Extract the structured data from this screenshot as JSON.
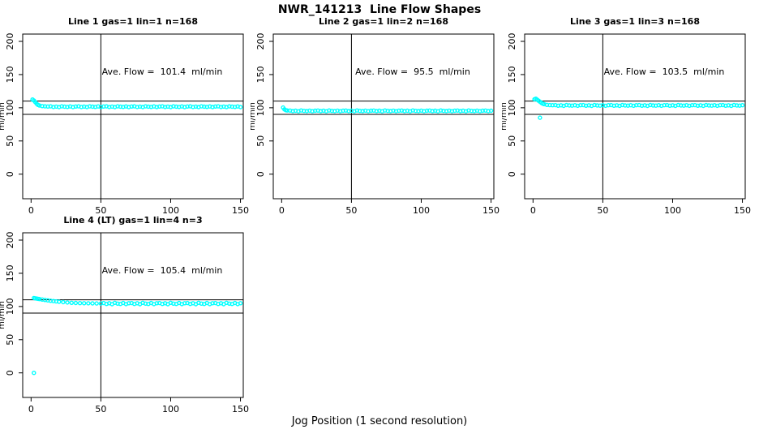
{
  "title": "NWR_141213  Line Flow Shapes",
  "xlabel": "Jog Position (1 second resolution)",
  "ylabel": "ml/min",
  "colors": {
    "points": "#00FFFF",
    "axis": "#000000",
    "background": "#FFFFFF"
  },
  "chart_data": [
    {
      "type": "scatter",
      "title": "Line 1 gas=1 lin=1 n=168",
      "annotation": "Ave. Flow =  101.4  ml/min",
      "ave_flow_ml_min": 101.4,
      "xlim": [
        -6,
        152
      ],
      "ylim": [
        -37,
        211
      ],
      "xticks": [
        0,
        50,
        100,
        150
      ],
      "yticks": [
        0,
        50,
        100,
        150,
        200
      ],
      "hlines": [
        110,
        90
      ],
      "vlines": [
        50
      ],
      "grid": false,
      "legend": null,
      "x": [
        1,
        2,
        3,
        4,
        5,
        6,
        8,
        10,
        12,
        14,
        16,
        18,
        20,
        22,
        24,
        26,
        28,
        30,
        32,
        34,
        36,
        38,
        40,
        42,
        44,
        46,
        48,
        50,
        52,
        54,
        56,
        58,
        60,
        62,
        64,
        66,
        68,
        70,
        72,
        74,
        76,
        78,
        80,
        82,
        84,
        86,
        88,
        90,
        92,
        94,
        96,
        98,
        100,
        102,
        104,
        106,
        108,
        110,
        112,
        114,
        116,
        118,
        120,
        122,
        124,
        126,
        128,
        130,
        132,
        134,
        136,
        138,
        140,
        142,
        144,
        146,
        148,
        150
      ],
      "y": [
        112.4,
        111.0,
        108.6,
        106.1,
        104.4,
        103.4,
        102.5,
        102.1,
        101.9,
        102.1,
        101.2,
        101.8,
        101.0,
        102.2,
        101.6,
        101.3,
        102.0,
        101.1,
        101.9,
        102.1,
        101.2,
        101.8,
        101.0,
        102.2,
        101.6,
        101.3,
        102.0,
        101.1,
        101.9,
        102.1,
        101.2,
        101.8,
        101.0,
        102.2,
        101.6,
        101.3,
        102.0,
        101.1,
        101.9,
        102.1,
        101.2,
        101.8,
        101.0,
        102.2,
        101.6,
        101.3,
        102.0,
        101.1,
        101.9,
        102.1,
        101.2,
        101.8,
        101.0,
        102.2,
        101.6,
        101.3,
        102.0,
        101.1,
        101.9,
        102.1,
        101.2,
        101.8,
        101.0,
        102.2,
        101.6,
        101.3,
        102.0,
        101.1,
        101.9,
        102.1,
        101.2,
        101.8,
        101.0,
        102.2,
        101.6,
        101.3,
        102.0,
        101.1
      ]
    },
    {
      "type": "scatter",
      "title": "Line 2 gas=1 lin=2 n=168",
      "annotation": "Ave. Flow =  95.5  ml/min",
      "ave_flow_ml_min": 95.5,
      "xlim": [
        -6,
        152
      ],
      "ylim": [
        -37,
        211
      ],
      "xticks": [
        0,
        50,
        100,
        150
      ],
      "yticks": [
        0,
        50,
        100,
        150,
        200
      ],
      "hlines": [
        110,
        90
      ],
      "vlines": [
        50
      ],
      "grid": false,
      "legend": null,
      "x": [
        1,
        2,
        3,
        4,
        6,
        8,
        10,
        12,
        14,
        16,
        18,
        20,
        22,
        24,
        26,
        28,
        30,
        32,
        34,
        36,
        38,
        40,
        42,
        44,
        46,
        48,
        50,
        52,
        54,
        56,
        58,
        60,
        62,
        64,
        66,
        68,
        70,
        72,
        74,
        76,
        78,
        80,
        82,
        84,
        86,
        88,
        90,
        92,
        94,
        96,
        98,
        100,
        102,
        104,
        106,
        108,
        110,
        112,
        114,
        116,
        118,
        120,
        122,
        124,
        126,
        128,
        130,
        132,
        134,
        136,
        138,
        140,
        142,
        144,
        146,
        148,
        150
      ],
      "y": [
        100.3,
        97.6,
        96.3,
        95.9,
        95.8,
        94.9,
        95.5,
        94.7,
        95.9,
        95.3,
        95.0,
        95.7,
        94.8,
        95.6,
        95.8,
        94.9,
        95.5,
        94.7,
        95.9,
        95.3,
        95.0,
        95.7,
        94.8,
        95.6,
        95.8,
        94.9,
        95.5,
        94.7,
        95.9,
        95.3,
        95.0,
        95.7,
        94.8,
        95.6,
        95.8,
        94.9,
        95.5,
        94.7,
        95.9,
        95.3,
        95.0,
        95.7,
        94.8,
        95.6,
        95.8,
        94.9,
        95.5,
        94.7,
        95.9,
        95.3,
        95.0,
        95.7,
        94.8,
        95.6,
        95.8,
        94.9,
        95.5,
        94.7,
        95.9,
        95.3,
        95.0,
        95.7,
        94.8,
        95.6,
        95.8,
        94.9,
        95.5,
        94.7,
        95.9,
        95.3,
        95.0,
        95.7,
        94.8,
        95.6,
        95.8,
        94.9,
        95.5
      ]
    },
    {
      "type": "scatter",
      "title": "Line 3 gas=1 lin=3 n=168",
      "annotation": "Ave. Flow =  103.5  ml/min",
      "ave_flow_ml_min": 103.5,
      "xlim": [
        -6,
        152
      ],
      "ylim": [
        -37,
        211
      ],
      "xticks": [
        0,
        50,
        100,
        150
      ],
      "yticks": [
        0,
        50,
        100,
        150,
        200
      ],
      "hlines": [
        110,
        90
      ],
      "vlines": [
        50
      ],
      "grid": false,
      "legend": null,
      "x": [
        1,
        2,
        3,
        4,
        5,
        5,
        6,
        7,
        8,
        10,
        12,
        14,
        16,
        18,
        20,
        22,
        24,
        26,
        28,
        30,
        32,
        34,
        36,
        38,
        40,
        42,
        44,
        46,
        48,
        50,
        52,
        54,
        56,
        58,
        60,
        62,
        64,
        66,
        68,
        70,
        72,
        74,
        76,
        78,
        80,
        82,
        84,
        86,
        88,
        90,
        92,
        94,
        96,
        98,
        100,
        102,
        104,
        106,
        108,
        110,
        112,
        114,
        116,
        118,
        120,
        122,
        124,
        126,
        128,
        130,
        132,
        134,
        136,
        138,
        140,
        142,
        144,
        146,
        148,
        150
      ],
      "y": [
        112.8,
        113.6,
        112.2,
        110.6,
        109.0,
        85.0,
        107.4,
        106.2,
        105.4,
        104.4,
        104.0,
        103.8,
        104.0,
        103.1,
        103.7,
        102.9,
        104.1,
        103.5,
        103.2,
        103.9,
        103.0,
        103.8,
        104.0,
        103.1,
        103.7,
        102.9,
        104.1,
        103.5,
        103.2,
        103.9,
        103.0,
        103.8,
        104.0,
        103.1,
        103.7,
        102.9,
        104.1,
        103.5,
        103.2,
        103.9,
        103.0,
        103.8,
        104.0,
        103.1,
        103.7,
        102.9,
        104.1,
        103.5,
        103.2,
        103.9,
        103.0,
        103.8,
        104.0,
        103.1,
        103.7,
        102.9,
        104.1,
        103.5,
        103.2,
        103.9,
        103.0,
        103.8,
        104.0,
        103.1,
        103.7,
        102.9,
        104.1,
        103.5,
        103.2,
        103.9,
        103.0,
        103.8,
        104.0,
        103.1,
        103.7,
        102.9,
        104.1,
        103.5,
        103.2,
        103.9
      ]
    },
    {
      "type": "scatter",
      "title": "Line 4 (LT) gas=1 lin=4 n=3",
      "annotation": "Ave. Flow =  105.4  ml/min",
      "ave_flow_ml_min": 105.4,
      "xlim": [
        -6,
        152
      ],
      "ylim": [
        -37,
        211
      ],
      "xticks": [
        0,
        50,
        100,
        150
      ],
      "yticks": [
        0,
        50,
        100,
        150,
        200
      ],
      "hlines": [
        110,
        90
      ],
      "vlines": [
        50
      ],
      "grid": false,
      "legend": null,
      "x": [
        2,
        2,
        3,
        4,
        5,
        6,
        8,
        10,
        12,
        14,
        16,
        18,
        20,
        23,
        26,
        29,
        32,
        35,
        38,
        41,
        44,
        47,
        50,
        52,
        54,
        56,
        58,
        60,
        62,
        64,
        66,
        68,
        70,
        72,
        74,
        76,
        78,
        80,
        82,
        84,
        86,
        88,
        90,
        92,
        94,
        96,
        98,
        100,
        102,
        104,
        106,
        108,
        110,
        112,
        114,
        116,
        118,
        120,
        122,
        124,
        126,
        128,
        130,
        132,
        134,
        136,
        138,
        140,
        142,
        144,
        146,
        148,
        150
      ],
      "y": [
        0.0,
        112.8,
        112.3,
        111.9,
        111.5,
        111.2,
        110.5,
        109.8,
        109.2,
        108.6,
        108.1,
        107.6,
        107.1,
        106.5,
        106.0,
        105.6,
        105.3,
        105.1,
        104.9,
        104.8,
        104.7,
        104.6,
        104.5,
        105.2,
        103.8,
        104.9,
        103.5,
        105.6,
        104.4,
        103.9,
        105.3,
        103.6,
        105.0,
        105.2,
        103.8,
        104.9,
        103.5,
        105.6,
        104.4,
        103.9,
        105.3,
        103.6,
        105.0,
        105.2,
        103.8,
        104.9,
        103.5,
        105.6,
        104.4,
        103.9,
        105.3,
        103.6,
        105.0,
        105.2,
        103.8,
        104.9,
        103.5,
        105.6,
        104.4,
        103.9,
        105.3,
        103.6,
        105.0,
        105.2,
        103.8,
        104.9,
        103.5,
        105.6,
        104.4,
        103.9,
        105.3,
        103.6,
        105.0
      ]
    }
  ]
}
